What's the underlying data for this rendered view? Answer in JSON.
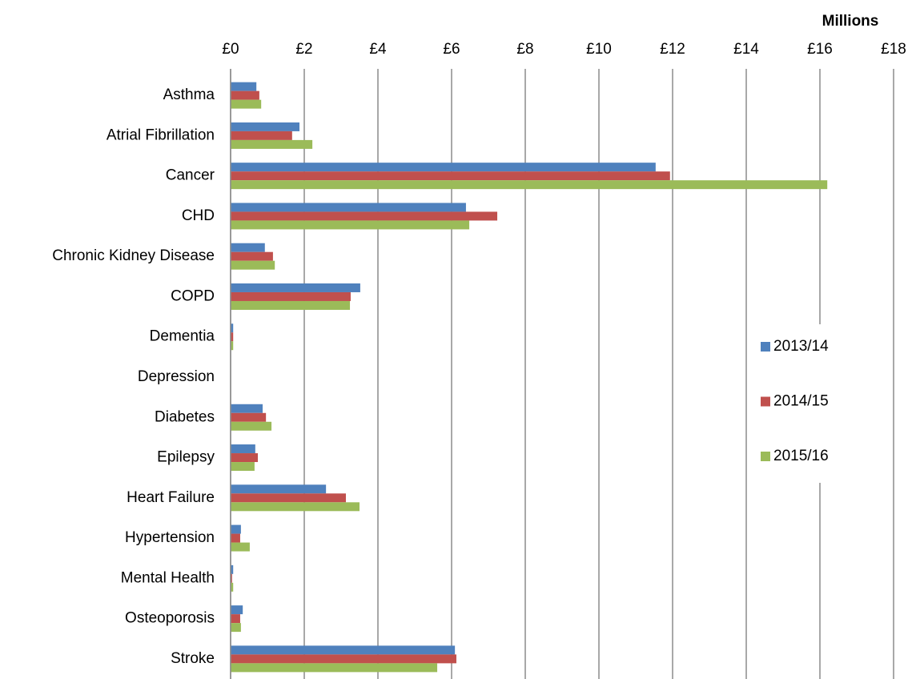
{
  "chart_data": {
    "type": "hbar",
    "axis_title": "Millions",
    "categories": [
      "Asthma",
      "Atrial Fibrillation",
      "Cancer",
      "CHD",
      "Chronic Kidney Disease",
      "COPD",
      "Dementia",
      "Depression",
      "Diabetes",
      "Epilepsy",
      "Heart Failure",
      "Hypertension",
      "Mental Health",
      "Osteoporosis",
      "Stroke"
    ],
    "series": [
      {
        "name": "2013/14",
        "color": "#4f81bd",
        "values": [
          0.7,
          1.87,
          11.54,
          6.39,
          0.93,
          3.52,
          0.07,
          0,
          0.87,
          0.67,
          2.59,
          0.28,
          0.07,
          0.33,
          6.09
        ]
      },
      {
        "name": "2014/15",
        "color": "#c0504d",
        "values": [
          0.78,
          1.67,
          11.93,
          7.24,
          1.15,
          3.26,
          0.07,
          0,
          0.96,
          0.74,
          3.13,
          0.26,
          0.04,
          0.26,
          6.13
        ]
      },
      {
        "name": "2015/16",
        "color": "#9bbb59",
        "values": [
          0.83,
          2.22,
          16.2,
          6.48,
          1.2,
          3.24,
          0.07,
          0,
          1.11,
          0.65,
          3.5,
          0.52,
          0.07,
          0.28,
          5.61
        ]
      }
    ],
    "xlim": [
      0,
      18
    ],
    "xticks": [
      {
        "value": 0,
        "label": "£0"
      },
      {
        "value": 2,
        "label": "£2"
      },
      {
        "value": 4,
        "label": "£4"
      },
      {
        "value": 6,
        "label": "£6"
      },
      {
        "value": 8,
        "label": "£8"
      },
      {
        "value": 10,
        "label": "£10"
      },
      {
        "value": 12,
        "label": "£12"
      },
      {
        "value": 14,
        "label": "£14"
      },
      {
        "value": 16,
        "label": "£16"
      },
      {
        "value": 18,
        "label": "£18"
      }
    ],
    "grid": true,
    "legend": "right"
  }
}
